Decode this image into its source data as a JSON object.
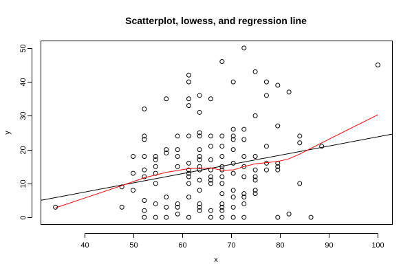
{
  "chart_data": {
    "type": "scatter",
    "title": "Scatterplot, lowess, and regression line",
    "xlabel": "x",
    "ylabel": "y",
    "xlim": [
      31.1,
      102.9
    ],
    "ylim": [
      -2,
      52
    ],
    "xticks": [
      40,
      50,
      60,
      70,
      80,
      90,
      100
    ],
    "yticks": [
      0,
      10,
      20,
      30,
      40,
      50
    ],
    "grid": false,
    "colors": {
      "points": "#000000",
      "lowess": "#ff0000",
      "regression": "#000000"
    },
    "points": [
      [
        34,
        3
      ],
      [
        47.6,
        9
      ],
      [
        47.6,
        3
      ],
      [
        49.9,
        18
      ],
      [
        49.9,
        13
      ],
      [
        49.9,
        8
      ],
      [
        52.2,
        32
      ],
      [
        52.2,
        24
      ],
      [
        52.2,
        23
      ],
      [
        52.2,
        18
      ],
      [
        52.2,
        14
      ],
      [
        52.2,
        12
      ],
      [
        52.2,
        5
      ],
      [
        52.2,
        2
      ],
      [
        52.2,
        0
      ],
      [
        54.5,
        18
      ],
      [
        54.5,
        17
      ],
      [
        54.5,
        15
      ],
      [
        54.5,
        13
      ],
      [
        54.5,
        10
      ],
      [
        54.5,
        4
      ],
      [
        54.5,
        0
      ],
      [
        56.7,
        35
      ],
      [
        56.7,
        20
      ],
      [
        56.7,
        19
      ],
      [
        56.7,
        6
      ],
      [
        56.7,
        3
      ],
      [
        56.7,
        0
      ],
      [
        59,
        24
      ],
      [
        59,
        20
      ],
      [
        59,
        18
      ],
      [
        59,
        15
      ],
      [
        59,
        4
      ],
      [
        59,
        3
      ],
      [
        59,
        1
      ],
      [
        61.3,
        42
      ],
      [
        61.3,
        40
      ],
      [
        61.3,
        35
      ],
      [
        61.3,
        33
      ],
      [
        61.3,
        24
      ],
      [
        61.3,
        16
      ],
      [
        61.3,
        14
      ],
      [
        61.3,
        13
      ],
      [
        61.3,
        12
      ],
      [
        61.3,
        10
      ],
      [
        61.3,
        6
      ],
      [
        61.3,
        0
      ],
      [
        63.5,
        36
      ],
      [
        63.5,
        31
      ],
      [
        63.5,
        25
      ],
      [
        63.5,
        24
      ],
      [
        63.5,
        20
      ],
      [
        63.5,
        18
      ],
      [
        63.5,
        17
      ],
      [
        63.5,
        15
      ],
      [
        63.5,
        14
      ],
      [
        63.5,
        11
      ],
      [
        63.5,
        8
      ],
      [
        63.5,
        4
      ],
      [
        63.5,
        3
      ],
      [
        63.5,
        2
      ],
      [
        65.8,
        35
      ],
      [
        65.8,
        24
      ],
      [
        65.8,
        21
      ],
      [
        65.8,
        17
      ],
      [
        65.8,
        14
      ],
      [
        65.8,
        12
      ],
      [
        65.8,
        11
      ],
      [
        65.8,
        10
      ],
      [
        65.8,
        2
      ],
      [
        65.8,
        0
      ],
      [
        68.1,
        46
      ],
      [
        68.1,
        24
      ],
      [
        68.1,
        21
      ],
      [
        68.1,
        18
      ],
      [
        68.1,
        15
      ],
      [
        68.1,
        14
      ],
      [
        68.1,
        12
      ],
      [
        68.1,
        10
      ],
      [
        68.1,
        7
      ],
      [
        68.1,
        4
      ],
      [
        68.1,
        3
      ],
      [
        68.1,
        2
      ],
      [
        68.1,
        0
      ],
      [
        70.4,
        40
      ],
      [
        70.4,
        26
      ],
      [
        70.4,
        24
      ],
      [
        70.4,
        23
      ],
      [
        70.4,
        20
      ],
      [
        70.4,
        16
      ],
      [
        70.4,
        13
      ],
      [
        70.4,
        8
      ],
      [
        70.4,
        6
      ],
      [
        70.4,
        3
      ],
      [
        70.4,
        0
      ],
      [
        72.6,
        50
      ],
      [
        72.6,
        26
      ],
      [
        72.6,
        23
      ],
      [
        72.6,
        18
      ],
      [
        72.6,
        15
      ],
      [
        72.6,
        12
      ],
      [
        72.6,
        7
      ],
      [
        72.6,
        6
      ],
      [
        72.6,
        4
      ],
      [
        72.6,
        0
      ],
      [
        74.9,
        43
      ],
      [
        74.9,
        30
      ],
      [
        74.9,
        18
      ],
      [
        74.9,
        14
      ],
      [
        74.9,
        12
      ],
      [
        74.9,
        11
      ],
      [
        74.9,
        8
      ],
      [
        74.9,
        7
      ],
      [
        77.2,
        40
      ],
      [
        77.2,
        36
      ],
      [
        77.2,
        21
      ],
      [
        77.2,
        16
      ],
      [
        77.2,
        14
      ],
      [
        79.5,
        39
      ],
      [
        79.5,
        27
      ],
      [
        79.5,
        16
      ],
      [
        79.5,
        15
      ],
      [
        79.5,
        14
      ],
      [
        79.5,
        0
      ],
      [
        81.8,
        37
      ],
      [
        81.8,
        1
      ],
      [
        84,
        24
      ],
      [
        84,
        22
      ],
      [
        84,
        10
      ],
      [
        86.3,
        0
      ],
      [
        88.5,
        21
      ],
      [
        100,
        45
      ]
    ],
    "regression": {
      "intercept": -3.41,
      "slope": 0.272
    },
    "lowess": [
      [
        34,
        2.8
      ],
      [
        47.6,
        9.4
      ],
      [
        52.2,
        11.7
      ],
      [
        56.7,
        13.3
      ],
      [
        61.3,
        14.4
      ],
      [
        65.8,
        14.6
      ],
      [
        68.1,
        13.9
      ],
      [
        70.4,
        14.0
      ],
      [
        72.6,
        15.0
      ],
      [
        74.9,
        15.8
      ],
      [
        79.5,
        16.5
      ],
      [
        81.8,
        17.3
      ],
      [
        84,
        18.7
      ],
      [
        88.5,
        22.0
      ],
      [
        100,
        30.3
      ]
    ]
  }
}
